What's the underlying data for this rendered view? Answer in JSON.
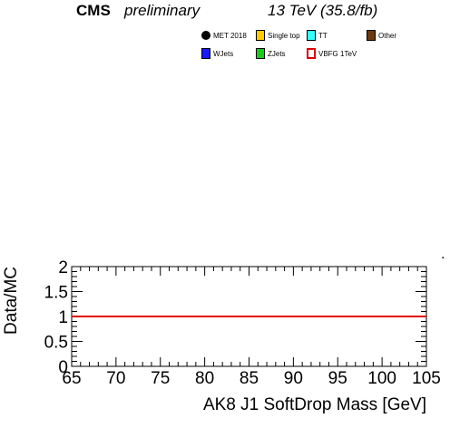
{
  "header": {
    "experiment": "CMS",
    "status": "preliminary",
    "energy_lumi": "13 TeV (35.8/fb)"
  },
  "legend": {
    "entries": [
      {
        "label": "MET 2018",
        "style": "dot",
        "color": "#000000"
      },
      {
        "label": "Single top",
        "style": "fill",
        "color": "#ffcc00"
      },
      {
        "label": "TT",
        "style": "fill",
        "color": "#33ffff"
      },
      {
        "label": "Other",
        "style": "fill",
        "color": "#6b3a10"
      },
      {
        "label": "WJets",
        "style": "fill",
        "color": "#1a1aff"
      },
      {
        "label": "ZJets",
        "style": "fill",
        "color": "#19cc19"
      },
      {
        "label": "VBFG 1TeV",
        "style": "outline",
        "color": "#e00000"
      }
    ]
  },
  "chart_data": {
    "type": "line",
    "title": "",
    "xlabel": "AK8 J1 SoftDrop Mass [GeV]",
    "ylabel": "Data/MC",
    "xlim": [
      65,
      105
    ],
    "ylim": [
      0,
      2
    ],
    "x_ticks": [
      "65",
      "70",
      "75",
      "80",
      "85",
      "90",
      "95",
      "100",
      "105"
    ],
    "y_ticks": [
      "0",
      "0.5",
      "1",
      "1.5",
      "2"
    ],
    "reference_line": {
      "y": 1,
      "color": "#e00000"
    },
    "series": [],
    "upper_panel_label": "."
  }
}
